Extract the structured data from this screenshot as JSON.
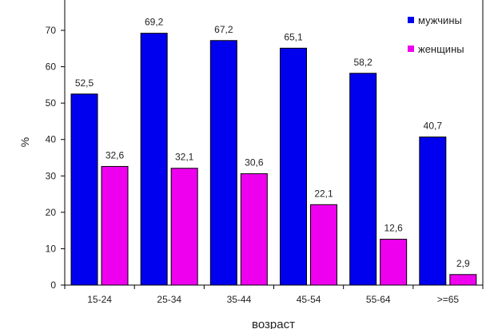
{
  "chart_data": {
    "type": "bar",
    "title": "",
    "xlabel": "возраст",
    "ylabel": "%",
    "categories": [
      "15-24",
      "25-34",
      "35-44",
      "45-54",
      "55-64",
      ">=65"
    ],
    "series": [
      {
        "name": "мужчины",
        "values": [
          52.5,
          69.2,
          67.2,
          65.1,
          58.2,
          40.7
        ],
        "labels": [
          "52,5",
          "69,2",
          "67,2",
          "65,1",
          "58,2",
          "40,7"
        ],
        "color": "#0000ee"
      },
      {
        "name": "женщины",
        "values": [
          32.6,
          32.1,
          30.6,
          22.1,
          12.6,
          2.9
        ],
        "labels": [
          "32,6",
          "32,1",
          "30,6",
          "22,1",
          "12,6",
          "2,9"
        ],
        "color": "#ee00ee"
      }
    ],
    "yticks": [
      "0",
      "10",
      "20",
      "30",
      "40",
      "50",
      "60",
      "70"
    ],
    "ylim": [
      0,
      70
    ],
    "grid": false,
    "legend_position": "top-right"
  }
}
